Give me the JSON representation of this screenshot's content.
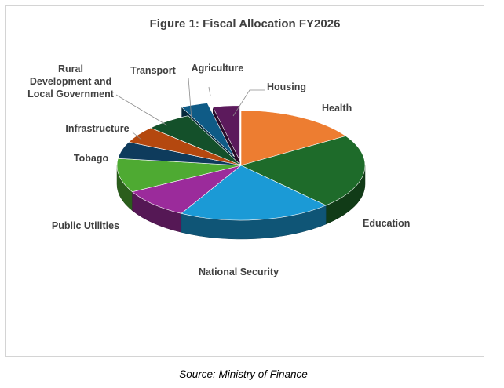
{
  "chart_data": {
    "type": "pie",
    "title": "Figure 1: Fiscal Allocation FY2026",
    "source": "Source: Ministry of Finance",
    "series": [
      {
        "name": "Health",
        "value": 16.0,
        "color": "#ED7D31"
      },
      {
        "name": "Education",
        "value": 22.0,
        "color": "#1E6B2A"
      },
      {
        "name": "National Security",
        "value": 20.0,
        "color": "#1B9AD6"
      },
      {
        "name": "Public Utilities",
        "value": 9.0,
        "color": "#9B2B9B"
      },
      {
        "name": "Tobago",
        "value": 10.0,
        "color": "#4EAA32"
      },
      {
        "name": "Infrastructure",
        "value": 5.0,
        "color": "#0E3B5C"
      },
      {
        "name": "Rural Development and Local Government",
        "value": 5.0,
        "color": "#B4480F"
      },
      {
        "name": "Transport",
        "value": 6.0,
        "color": "#14502A"
      },
      {
        "name": "Agriculture",
        "value": 3.5,
        "color": "#0F5B86"
      },
      {
        "name": "Housing",
        "value": 3.5,
        "color": "#5C1A5C"
      }
    ]
  }
}
